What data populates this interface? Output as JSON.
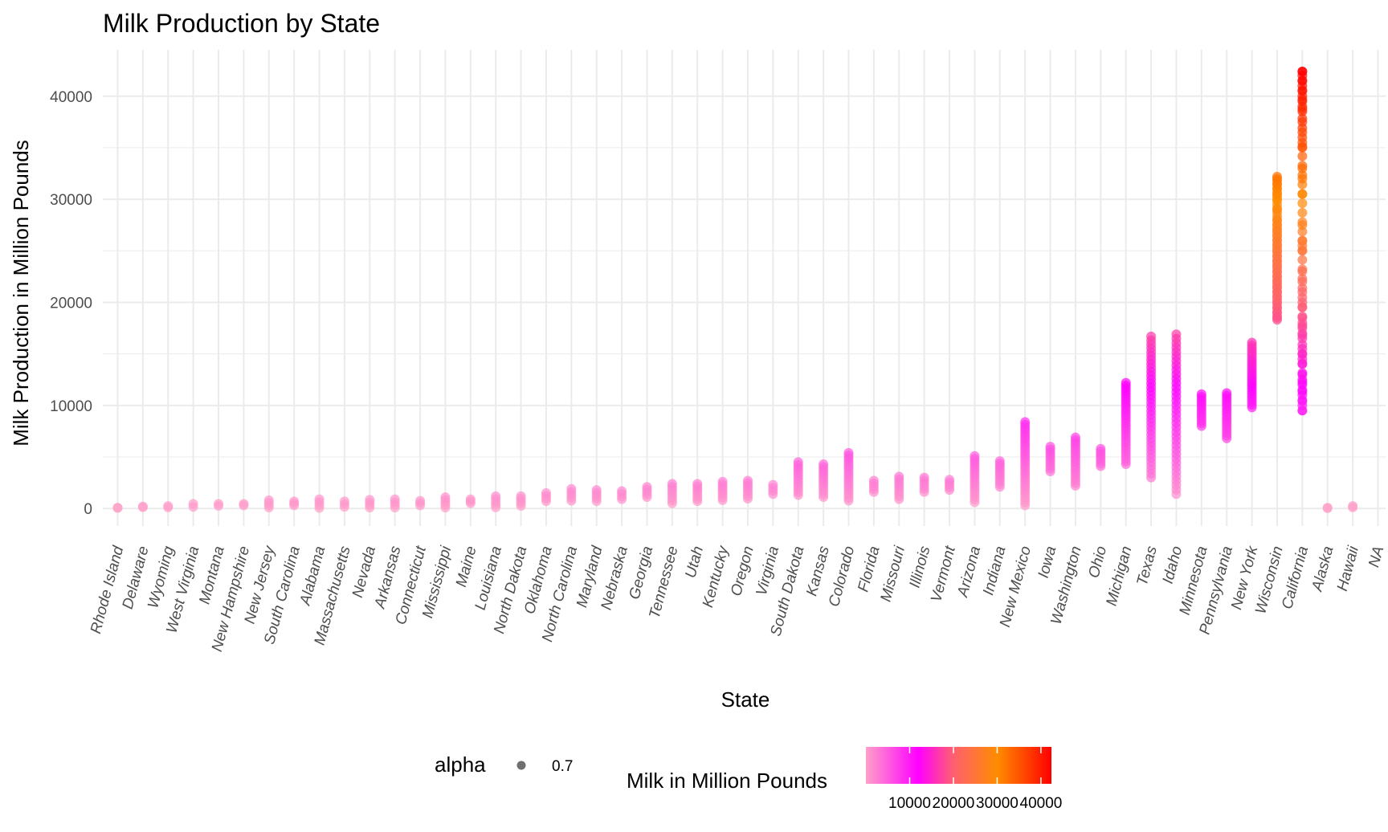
{
  "chart_data": {
    "type": "scatter",
    "title": "Milk Production by State",
    "xlabel": "State",
    "ylabel": "Milk Production in Million Pounds",
    "ylim": [
      -1700,
      44500
    ],
    "yticks": [
      0,
      10000,
      20000,
      30000,
      40000
    ],
    "grid": true,
    "legend_position": "bottom",
    "categories": [
      "Rhode Island",
      "Delaware",
      "Wyoming",
      "West Virginia",
      "Montana",
      "New Hampshire",
      "New Jersey",
      "South Carolina",
      "Alabama",
      "Massachusetts",
      "Nevada",
      "Arkansas",
      "Connecticut",
      "Mississippi",
      "Maine",
      "Louisiana",
      "North Dakota",
      "Oklahoma",
      "North Carolina",
      "Maryland",
      "Nebraska",
      "Georgia",
      "Tennessee",
      "Utah",
      "Kentucky",
      "Oregon",
      "Virginia",
      "South Dakota",
      "Kansas",
      "Colorado",
      "Florida",
      "Missouri",
      "Illinois",
      "Vermont",
      "Arizona",
      "Indiana",
      "New Mexico",
      "Iowa",
      "Washington",
      "Ohio",
      "Michigan",
      "Texas",
      "Idaho",
      "Minnesota",
      "Pennsylvania",
      "New York",
      "Wisconsin",
      "California",
      "Alaska",
      "Hawaii",
      "NA"
    ],
    "ranges": [
      [
        50,
        80
      ],
      [
        120,
        200
      ],
      [
        100,
        250
      ],
      [
        150,
        450
      ],
      [
        250,
        450
      ],
      [
        300,
        450
      ],
      [
        80,
        800
      ],
      [
        300,
        700
      ],
      [
        50,
        900
      ],
      [
        150,
        700
      ],
      [
        80,
        850
      ],
      [
        80,
        900
      ],
      [
        300,
        750
      ],
      [
        80,
        1100
      ],
      [
        500,
        900
      ],
      [
        100,
        1200
      ],
      [
        250,
        1200
      ],
      [
        700,
        1500
      ],
      [
        750,
        1900
      ],
      [
        700,
        1800
      ],
      [
        900,
        1700
      ],
      [
        1100,
        2100
      ],
      [
        500,
        2400
      ],
      [
        700,
        2400
      ],
      [
        800,
        2600
      ],
      [
        950,
        2700
      ],
      [
        1400,
        2300
      ],
      [
        1300,
        4500
      ],
      [
        1100,
        4300
      ],
      [
        750,
        5400
      ],
      [
        1600,
        2700
      ],
      [
        900,
        3100
      ],
      [
        1600,
        3000
      ],
      [
        1800,
        2800
      ],
      [
        600,
        5100
      ],
      [
        2100,
        4600
      ],
      [
        300,
        8400
      ],
      [
        3600,
        6000
      ],
      [
        2200,
        6900
      ],
      [
        4100,
        5800
      ],
      [
        4300,
        12200
      ],
      [
        3000,
        16700
      ],
      [
        1400,
        16900
      ],
      [
        8000,
        11100
      ],
      [
        6800,
        11200
      ],
      [
        9800,
        16100
      ],
      [
        18300,
        32200
      ],
      [
        9500,
        42400
      ],
      [
        20,
        80
      ],
      [
        100,
        250
      ],
      null
    ],
    "extra_points": {
      "Wisconsin": [
        18500,
        19000,
        19500,
        20000,
        20500,
        21000,
        21500,
        22000,
        22500,
        23000,
        23500,
        24000,
        24500,
        25000,
        25500,
        26000,
        26500,
        27000,
        27500,
        28000,
        29000,
        30000,
        30500,
        31000,
        31500,
        32000
      ],
      "California": [
        9500,
        10000,
        10500,
        11000,
        11500,
        12000,
        12500,
        13000,
        14000,
        14500,
        15000,
        15500,
        16500,
        17000,
        17500,
        18000,
        18500,
        19500,
        20000,
        21000,
        22000,
        23000,
        25000,
        25500,
        26000,
        27500,
        30500,
        32000,
        33000,
        35000,
        35500,
        36500,
        37500,
        38500,
        39000,
        39500,
        40000,
        40500,
        41000,
        41500,
        42000,
        42400
      ]
    },
    "series": [
      {
        "name": "alpha",
        "legend_value": "0.7"
      }
    ],
    "color_legend": {
      "title": "Milk in Million Pounds",
      "ticks": [
        10000,
        20000,
        30000,
        40000
      ],
      "tick_labels": [
        "10000",
        "20000",
        "30000",
        "40000"
      ],
      "min": 0,
      "max": 42400,
      "stops": [
        {
          "value": 0,
          "color": "#ffa0c8"
        },
        {
          "value": 12000,
          "color": "#ff00ff"
        },
        {
          "value": 20000,
          "color": "#ff6070"
        },
        {
          "value": 30000,
          "color": "#ff8c00"
        },
        {
          "value": 42400,
          "color": "#ff0000"
        }
      ]
    },
    "colors": {
      "grid": "#ebebeb",
      "point_default": "#ff9bc8",
      "legend_point": "#333333"
    }
  },
  "legend": {
    "alpha_title": "alpha",
    "alpha_value": "0.7"
  }
}
